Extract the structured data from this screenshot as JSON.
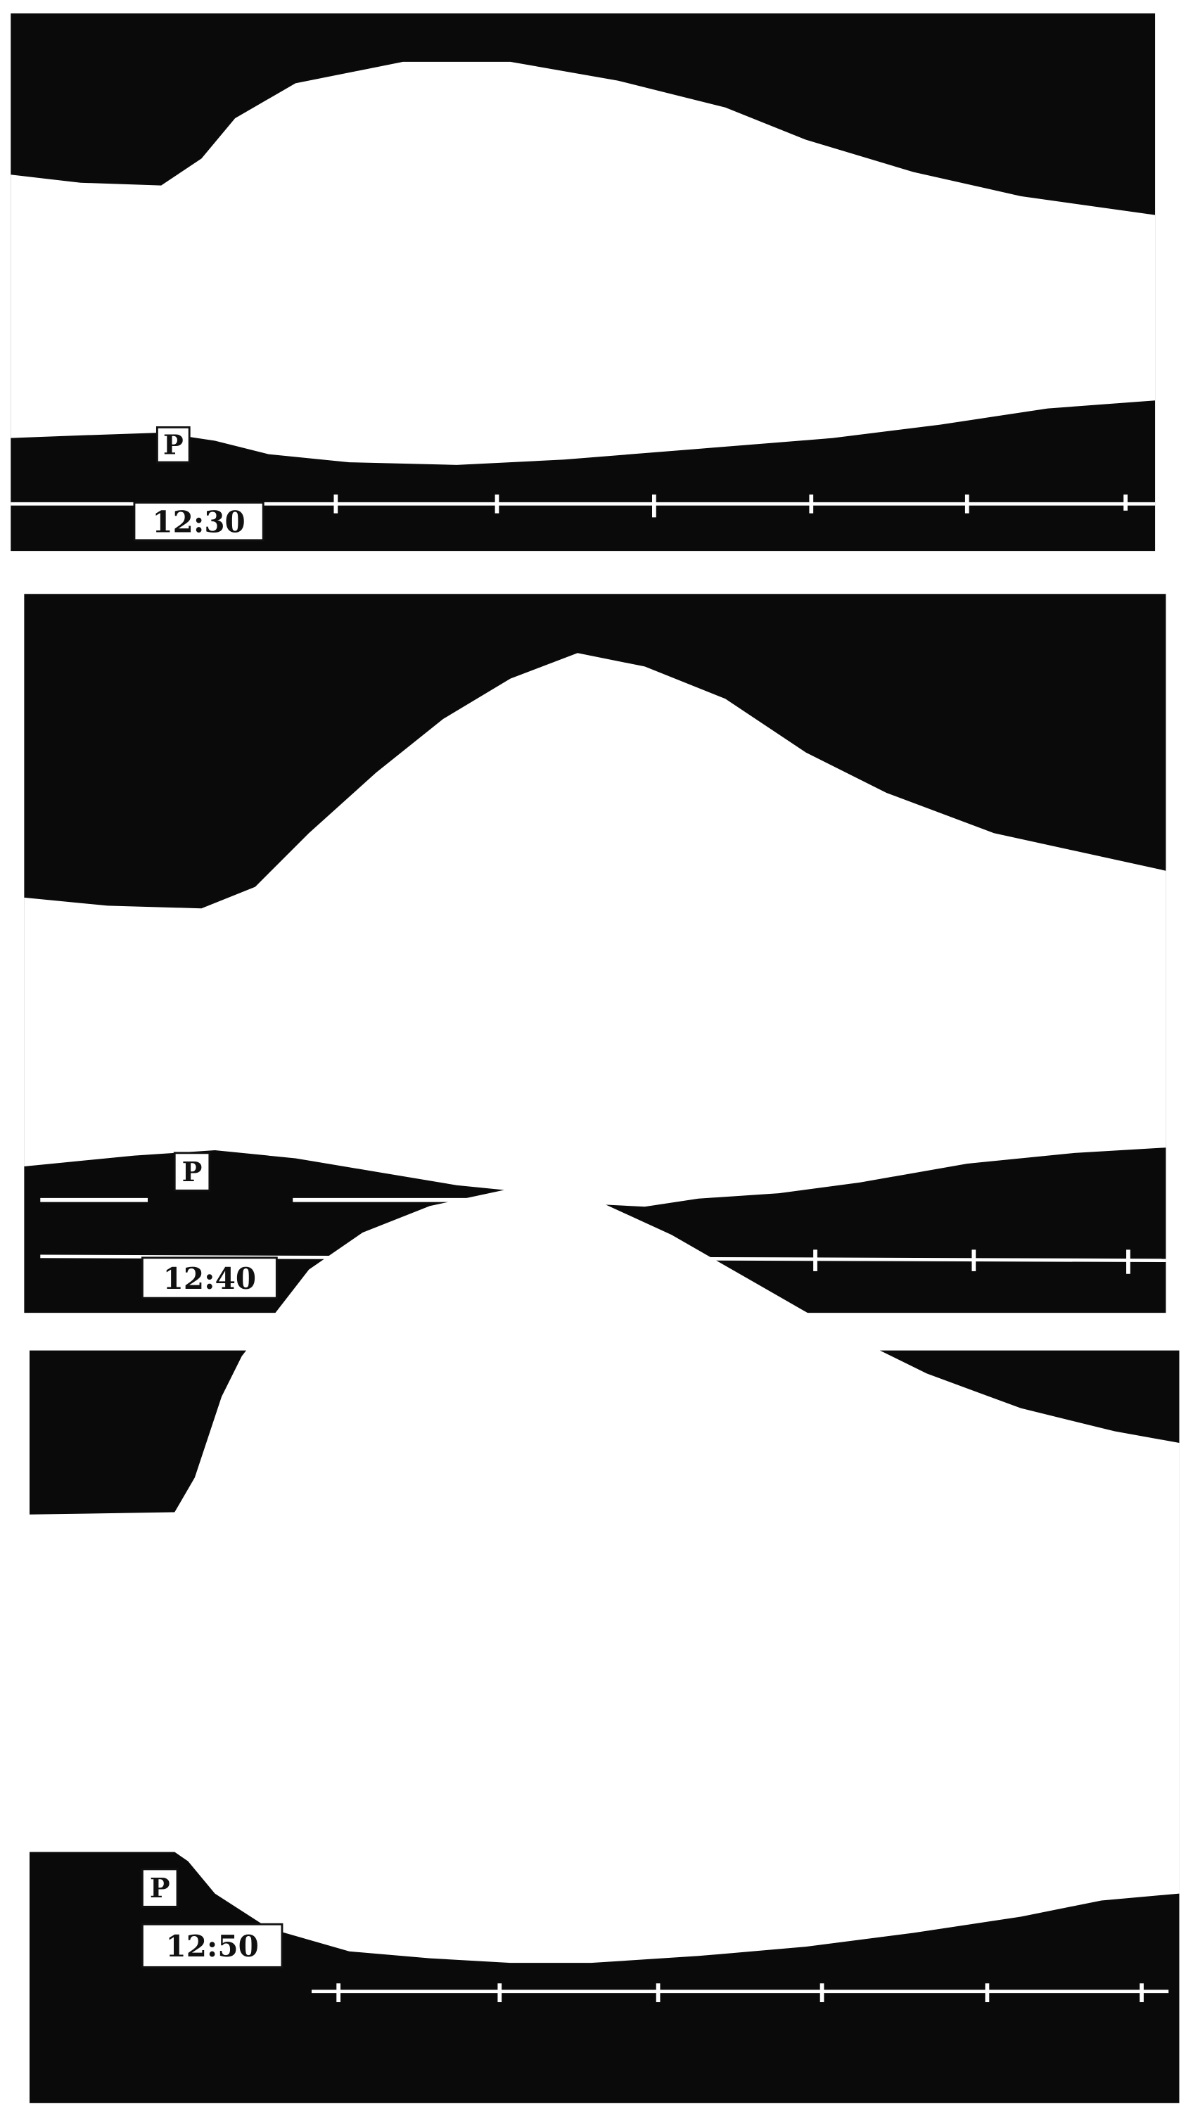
{
  "panels": [
    {
      "marker": "P",
      "time": "12:30"
    },
    {
      "marker": "P",
      "time": "12:40"
    },
    {
      "marker": "P",
      "time": "12:50"
    }
  ]
}
